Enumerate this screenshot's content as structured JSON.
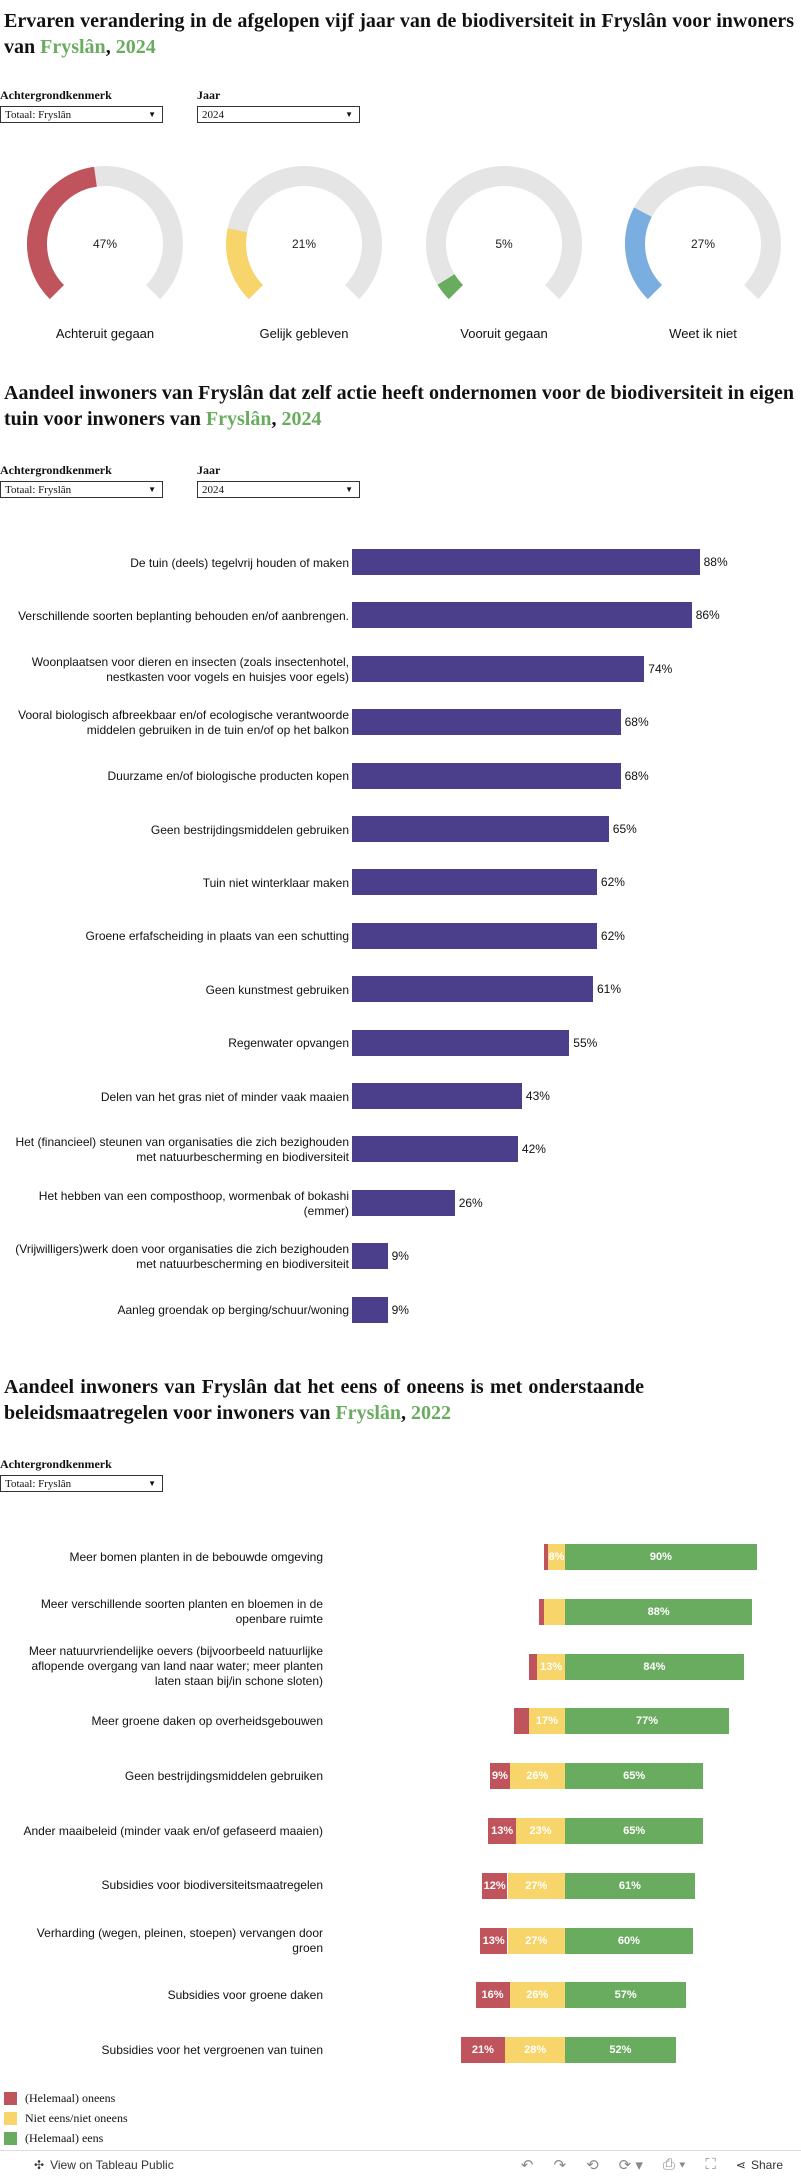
{
  "colors": {
    "accent": "#6aac5f",
    "purple": "#4b3f8c",
    "red": "#c0545c",
    "yellow": "#f7d56a",
    "green": "#6aac5f",
    "blue": "#7aade0",
    "track": "#e5e5e5"
  },
  "section1": {
    "title_prefix": "Ervaren verandering in de afgelopen vijf jaar van de biodiversiteit in Fryslân voor inwoners van ",
    "title_region": "Fryslân",
    "title_sep": ", ",
    "title_year": "2024",
    "filter1": {
      "label": "Achtergrondkenmerk",
      "value": "Totaal: Fryslân"
    },
    "filter2": {
      "label": "Jaar",
      "value": "2024"
    }
  },
  "gauges": [
    {
      "label": "Achteruit gegaan",
      "value": 47,
      "value_label": "47%",
      "color": "#c0545c"
    },
    {
      "label": "Gelijk gebleven",
      "value": 21,
      "value_label": "21%",
      "color": "#f7d56a"
    },
    {
      "label": "Vooruit gegaan",
      "value": 5,
      "value_label": "5%",
      "color": "#6aac5f"
    },
    {
      "label": "Weet ik niet",
      "value": 27,
      "value_label": "27%",
      "color": "#7aade0"
    }
  ],
  "section2": {
    "title_prefix": "Aandeel inwoners van Fryslân dat zelf actie heeft ondernomen voor de biodiversiteit in eigen tuin voor inwoners van ",
    "title_region": "Fryslân",
    "title_sep": ", ",
    "title_year": "2024",
    "filter1": {
      "label": "Achtergrondkenmerk",
      "value": "Totaal: Fryslân"
    },
    "filter2": {
      "label": "Jaar",
      "value": "2024"
    }
  },
  "section3": {
    "title_prefix": "Aandeel inwoners van Fryslân dat het eens of oneens is met onderstaande beleidsmaatregelen voor inwoners van ",
    "title_region": "Fryslân",
    "title_sep": ", ",
    "title_year": "2022",
    "filter1": {
      "label": "Achtergrondkenmerk",
      "value": "Totaal: Fryslân"
    }
  },
  "chart_data": [
    {
      "type": "pie",
      "categories": [
        "Achteruit gegaan",
        "Gelijk gebleven",
        "Vooruit gegaan",
        "Weet ik niet"
      ],
      "values": [
        47,
        21,
        5,
        27
      ],
      "unit": "%"
    },
    {
      "type": "bar",
      "orientation": "horizontal",
      "categories": [
        "De tuin (deels) tegelvrij houden of maken",
        "Verschillende soorten beplanting behouden en/of aanbrengen.",
        "Woonplaatsen voor dieren en insecten (zoals insectenhotel, nestkasten voor vogels en huisjes voor egels)",
        "Vooral biologisch afbreekbaar en/of ecologische verantwoorde middelen gebruiken in de tuin en/of op het balkon",
        "Duurzame en/of biologische producten kopen",
        "Geen bestrijdingsmiddelen gebruiken",
        "Tuin niet winterklaar maken",
        "Groene erfafscheiding in plaats van een schutting",
        "Geen kunstmest gebruiken",
        "Regenwater opvangen",
        "Delen van het gras niet of minder vaak maaien",
        "Het (financieel) steunen van organisaties die zich bezighouden met natuurbescherming en biodiversiteit",
        "Het hebben van een composthoop, wormenbak of bokashi (emmer)",
        "(Vrijwilligers)werk doen voor organisaties die zich bezighouden met natuurbescherming en biodiversiteit",
        "Aanleg groendak op berging/schuur/woning"
      ],
      "values": [
        88,
        86,
        74,
        68,
        68,
        65,
        62,
        62,
        61,
        55,
        43,
        42,
        26,
        9,
        9
      ],
      "value_labels": [
        "88%",
        "86%",
        "74%",
        "68%",
        "68%",
        "65%",
        "62%",
        "62%",
        "61%",
        "55%",
        "43%",
        "42%",
        "26%",
        "9%",
        "9%"
      ],
      "xlim": [
        0,
        100
      ]
    },
    {
      "type": "bar",
      "orientation": "horizontal",
      "stacked": "diverging",
      "categories": [
        "Meer bomen planten in de bebouwde omgeving",
        "Meer verschillende soorten planten en bloemen in de openbare ruimte",
        "Meer natuurvriendelijke oevers (bijvoorbeeld natuurlijke aflopende overgang van land naar water; meer planten laten staan bij/in schone sloten)",
        "Meer groene daken op overheidsgebouwen",
        "Geen bestrijdingsmiddelen gebruiken",
        "Ander maaibeleid (minder vaak en/of gefaseerd maaien)",
        "Subsidies voor biodiversiteitsmaatregelen",
        "Verharding (wegen, pleinen, stoepen) vervangen door groen",
        "Subsidies voor groene daken",
        "Subsidies voor het vergroenen van tuinen"
      ],
      "series": [
        {
          "name": "(Helemaal) oneens",
          "color": "#c0545c",
          "values": [
            2,
            2,
            4,
            7,
            9,
            13,
            12,
            13,
            16,
            21
          ],
          "labels": [
            "",
            "",
            "",
            "",
            "9%",
            "13%",
            "12%",
            "13%",
            "16%",
            "21%"
          ]
        },
        {
          "name": "Niet eens/niet oneens",
          "color": "#f7d56a",
          "values": [
            8,
            10,
            13,
            17,
            26,
            23,
            27,
            27,
            26,
            28
          ],
          "labels": [
            "8%",
            "",
            "13%",
            "17%",
            "26%",
            "23%",
            "27%",
            "27%",
            "26%",
            "28%"
          ]
        },
        {
          "name": "(Helemaal) eens",
          "color": "#6aac5f",
          "values": [
            90,
            88,
            84,
            77,
            65,
            65,
            61,
            60,
            57,
            52
          ],
          "labels": [
            "90%",
            "88%",
            "84%",
            "77%",
            "65%",
            "65%",
            "61%",
            "60%",
            "57%",
            "52%"
          ]
        }
      ]
    }
  ],
  "footer": {
    "view_label": "View on Tableau Public",
    "share_label": "Share"
  }
}
